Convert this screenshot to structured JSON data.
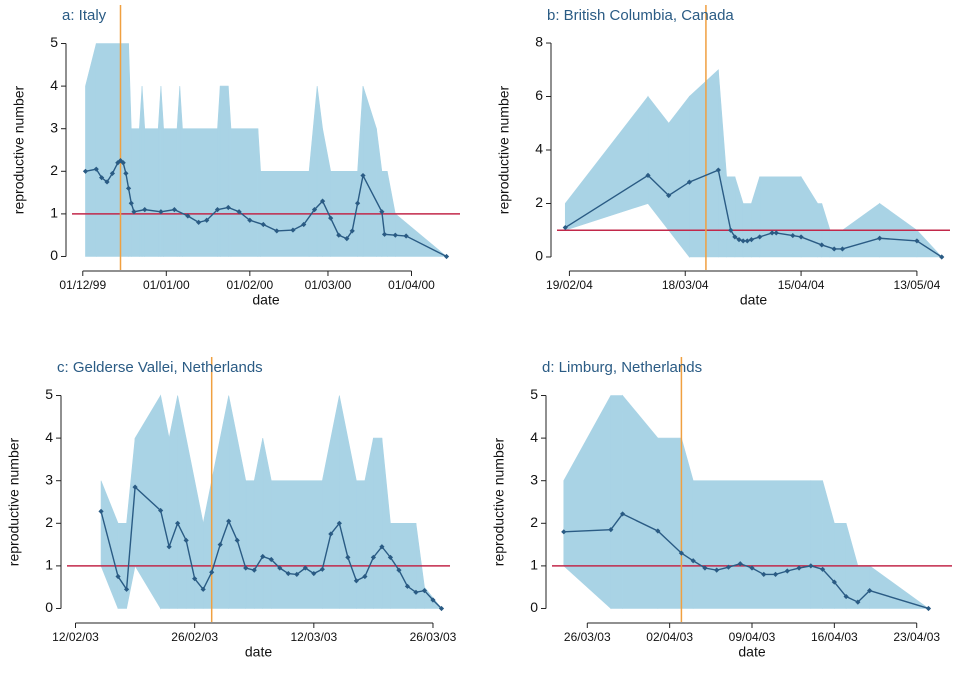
{
  "chart_data": [
    {
      "type": "line",
      "title": "a: Italy",
      "xlabel": "date",
      "ylabel": "reproductive number",
      "x": [
        "1999-12-02",
        "1999-12-06",
        "1999-12-08",
        "1999-12-10",
        "1999-12-12",
        "1999-12-14",
        "1999-12-15",
        "1999-12-16",
        "1999-12-17",
        "1999-12-18",
        "1999-12-19",
        "1999-12-20",
        "1999-12-24",
        "1999-12-30",
        "2000-01-04",
        "2000-01-09",
        "2000-01-13",
        "2000-01-16",
        "2000-01-20",
        "2000-01-24",
        "2000-01-28",
        "2000-02-01",
        "2000-02-06",
        "2000-02-11",
        "2000-02-17",
        "2000-02-21",
        "2000-02-25",
        "2000-02-28",
        "2000-03-02",
        "2000-03-05",
        "2000-03-08",
        "2000-03-10",
        "2000-03-12",
        "2000-03-14",
        "2000-03-21",
        "2000-03-22",
        "2000-03-26",
        "2000-03-30",
        "2000-04-14"
      ],
      "values": [
        2.0,
        2.05,
        1.85,
        1.75,
        1.95,
        2.2,
        2.25,
        2.2,
        1.95,
        1.6,
        1.25,
        1.05,
        1.1,
        1.05,
        1.1,
        0.95,
        0.8,
        0.85,
        1.1,
        1.15,
        1.05,
        0.85,
        0.75,
        0.6,
        0.62,
        0.75,
        1.1,
        1.3,
        0.9,
        0.5,
        0.42,
        0.6,
        1.25,
        1.9,
        1.05,
        0.52,
        0.5,
        0.48,
        0.0
      ],
      "band": {
        "x": [
          "1999-12-02",
          "1999-12-06",
          "1999-12-18",
          "1999-12-19",
          "1999-12-22",
          "1999-12-23",
          "1999-12-24",
          "1999-12-29",
          "1999-12-30",
          "1999-12-31",
          "2000-01-05",
          "2000-01-06",
          "2000-01-07",
          "2000-01-20",
          "2000-01-21",
          "2000-01-24",
          "2000-01-25",
          "2000-02-04",
          "2000-02-05",
          "2000-02-23",
          "2000-02-26",
          "2000-02-28",
          "2000-03-02",
          "2000-03-12",
          "2000-03-14",
          "2000-03-19",
          "2000-03-21",
          "2000-03-23",
          "2000-03-26",
          "2000-04-14"
        ],
        "lower": [
          0,
          0,
          0,
          0,
          0,
          0,
          0,
          0,
          0,
          0,
          0,
          0,
          0,
          0,
          0,
          0,
          0,
          0,
          0,
          0,
          0,
          0,
          0,
          0,
          0,
          0,
          0,
          0,
          0,
          0
        ],
        "upper": [
          4,
          5,
          5,
          3,
          3,
          4,
          3,
          3,
          4,
          3,
          3,
          4,
          3,
          3,
          4,
          4,
          3,
          3,
          2,
          2,
          4,
          3,
          2,
          2,
          4,
          3,
          2,
          2,
          1,
          0
        ]
      },
      "hline": 1,
      "vline": "1999-12-15",
      "xlim": [
        "1999-11-27",
        "2000-04-19"
      ],
      "xticks": [
        {
          "value": "1999-12-01",
          "label": "01/12/99"
        },
        {
          "value": "2000-01-01",
          "label": "01/01/00"
        },
        {
          "value": "2000-02-01",
          "label": "01/02/00"
        },
        {
          "value": "2000-03-01",
          "label": "01/03/00"
        },
        {
          "value": "2000-04-01",
          "label": "01/04/00"
        }
      ],
      "ylim": [
        -0.2,
        5.2
      ],
      "yticks": [
        0,
        1,
        2,
        3,
        4,
        5
      ],
      "color": "#2a5b84",
      "band_color": "#a9d3e5",
      "hline_color": "#c2284a",
      "vline_color": "#f0a040"
    },
    {
      "type": "line",
      "title": "b: British Columbia, Canada",
      "xlabel": "date",
      "ylabel": "reproductive number",
      "x": [
        "2004-02-18",
        "2004-03-09",
        "2004-03-14",
        "2004-03-19",
        "2004-03-26",
        "2004-03-29",
        "2004-03-30",
        "2004-03-31",
        "2004-04-01",
        "2004-04-02",
        "2004-04-03",
        "2004-04-05",
        "2004-04-08",
        "2004-04-09",
        "2004-04-13",
        "2004-04-15",
        "2004-04-20",
        "2004-04-23",
        "2004-04-25",
        "2004-05-04",
        "2004-05-13",
        "2004-05-19"
      ],
      "values": [
        1.1,
        3.05,
        2.3,
        2.8,
        3.25,
        1.0,
        0.75,
        0.65,
        0.6,
        0.6,
        0.65,
        0.75,
        0.9,
        0.9,
        0.8,
        0.75,
        0.45,
        0.3,
        0.3,
        0.7,
        0.6,
        0.0
      ],
      "band": {
        "x": [
          "2004-02-18",
          "2004-03-09",
          "2004-03-14",
          "2004-03-19",
          "2004-03-26",
          "2004-03-28",
          "2004-03-30",
          "2004-04-01",
          "2004-04-03",
          "2004-04-05",
          "2004-04-15",
          "2004-04-19",
          "2004-04-20",
          "2004-04-22",
          "2004-04-25",
          "2004-05-04",
          "2004-05-13",
          "2004-05-19"
        ],
        "lower": [
          1,
          2,
          1,
          0,
          0,
          0,
          0,
          0,
          0,
          0,
          0,
          0,
          0,
          0,
          0,
          0,
          0,
          0
        ],
        "upper": [
          2,
          6,
          5,
          6,
          7,
          3,
          3,
          2,
          2,
          3,
          3,
          2,
          2,
          1,
          1,
          2,
          1,
          0
        ]
      },
      "hline": 1,
      "vline": "2004-03-23",
      "xlim": [
        "2004-02-16",
        "2004-05-21"
      ],
      "xticks": [
        {
          "value": "2004-02-19",
          "label": "19/02/04"
        },
        {
          "value": "2004-03-18",
          "label": "18/03/04"
        },
        {
          "value": "2004-04-15",
          "label": "15/04/04"
        },
        {
          "value": "2004-05-13",
          "label": "13/05/04"
        }
      ],
      "ylim": [
        -0.3,
        8.3
      ],
      "yticks": [
        0,
        2,
        4,
        6,
        8
      ],
      "color": "#2a5b84",
      "band_color": "#a9d3e5",
      "hline_color": "#c2284a",
      "vline_color": "#f0a040"
    },
    {
      "type": "line",
      "title": "c: Gelderse Vallei, Netherlands",
      "xlabel": "date",
      "ylabel": "reproductive number",
      "x": [
        "2003-02-15",
        "2003-02-17",
        "2003-02-18",
        "2003-02-19",
        "2003-02-22",
        "2003-02-23",
        "2003-02-24",
        "2003-02-25",
        "2003-02-26",
        "2003-02-27",
        "2003-02-28",
        "2003-03-01",
        "2003-03-02",
        "2003-03-03",
        "2003-03-04",
        "2003-03-05",
        "2003-03-06",
        "2003-03-07",
        "2003-03-08",
        "2003-03-09",
        "2003-03-10",
        "2003-03-11",
        "2003-03-12",
        "2003-03-13",
        "2003-03-14",
        "2003-03-15",
        "2003-03-16",
        "2003-03-17",
        "2003-03-18",
        "2003-03-19",
        "2003-03-20",
        "2003-03-21",
        "2003-03-22",
        "2003-03-23",
        "2003-03-24",
        "2003-03-25",
        "2003-03-26",
        "2003-03-27"
      ],
      "values": [
        2.28,
        0.75,
        0.45,
        2.85,
        2.3,
        1.45,
        2.0,
        1.6,
        0.7,
        0.45,
        0.85,
        1.5,
        2.05,
        1.6,
        0.95,
        0.9,
        1.22,
        1.15,
        0.95,
        0.82,
        0.8,
        0.95,
        0.82,
        0.92,
        1.75,
        2.0,
        1.2,
        0.65,
        0.75,
        1.2,
        1.45,
        1.2,
        0.9,
        0.52,
        0.38,
        0.42,
        0.2,
        0.0
      ],
      "band": {
        "x": [
          "2003-02-15",
          "2003-02-17",
          "2003-02-18",
          "2003-02-19",
          "2003-02-22",
          "2003-02-23",
          "2003-02-24",
          "2003-02-25",
          "2003-02-26",
          "2003-02-27",
          "2003-02-28",
          "2003-03-02",
          "2003-03-04",
          "2003-03-05",
          "2003-03-06",
          "2003-03-07",
          "2003-03-13",
          "2003-03-15",
          "2003-03-17",
          "2003-03-18",
          "2003-03-19",
          "2003-03-20",
          "2003-03-21",
          "2003-03-24",
          "2003-03-25",
          "2003-03-27"
        ],
        "lower": [
          1,
          0,
          0,
          1,
          0,
          0,
          0,
          0,
          0,
          0,
          0,
          0,
          0,
          0,
          0,
          0,
          0,
          0,
          0,
          0,
          0,
          0,
          0,
          0,
          0,
          0
        ],
        "upper": [
          3,
          2,
          2,
          4,
          5,
          4,
          5,
          4,
          3,
          2,
          3,
          5,
          3,
          3,
          4,
          3,
          3,
          5,
          3,
          3,
          4,
          4,
          2,
          2,
          0.5,
          0
        ]
      },
      "hline": 1,
      "vline": "2003-02-28",
      "xlim": [
        "2003-02-11",
        "2003-03-28"
      ],
      "xticks": [
        {
          "value": "2003-02-12",
          "label": "12/02/03"
        },
        {
          "value": "2003-02-26",
          "label": "26/02/03"
        },
        {
          "value": "2003-03-12",
          "label": "12/03/03"
        },
        {
          "value": "2003-03-26",
          "label": "26/03/03"
        }
      ],
      "ylim": [
        -0.2,
        5.2
      ],
      "yticks": [
        0,
        1,
        2,
        3,
        4,
        5
      ],
      "color": "#2a5b84",
      "band_color": "#a9d3e5",
      "hline_color": "#c2284a",
      "vline_color": "#f0a040"
    },
    {
      "type": "line",
      "title": "d: Limburg, Netherlands",
      "xlabel": "date",
      "ylabel": "reproductive number",
      "x": [
        "2003-03-24",
        "2003-03-28",
        "2003-03-29",
        "2003-04-01",
        "2003-04-03",
        "2003-04-04",
        "2003-04-05",
        "2003-04-06",
        "2003-04-07",
        "2003-04-08",
        "2003-04-09",
        "2003-04-10",
        "2003-04-11",
        "2003-04-12",
        "2003-04-13",
        "2003-04-14",
        "2003-04-15",
        "2003-04-16",
        "2003-04-17",
        "2003-04-18",
        "2003-04-19",
        "2003-04-24"
      ],
      "values": [
        1.8,
        1.85,
        2.22,
        1.82,
        1.3,
        1.12,
        0.95,
        0.9,
        0.97,
        1.05,
        0.95,
        0.8,
        0.8,
        0.88,
        0.95,
        1.0,
        0.92,
        0.62,
        0.28,
        0.15,
        0.42,
        0.0
      ],
      "band": {
        "x": [
          "2003-03-24",
          "2003-03-28",
          "2003-03-29",
          "2003-04-01",
          "2003-04-03",
          "2003-04-04",
          "2003-04-14",
          "2003-04-15",
          "2003-04-16",
          "2003-04-17",
          "2003-04-18",
          "2003-04-19",
          "2003-04-24"
        ],
        "lower": [
          1,
          0,
          0,
          0,
          0,
          0,
          0,
          0,
          0,
          0,
          0,
          0,
          0
        ],
        "upper": [
          3,
          5,
          5,
          4,
          4,
          3,
          3,
          3,
          2,
          2,
          1,
          1,
          0
        ]
      },
      "hline": 1,
      "vline": "2003-04-03",
      "xlim": [
        "2003-03-23",
        "2003-04-26"
      ],
      "xticks": [
        {
          "value": "2003-03-26",
          "label": "26/03/03"
        },
        {
          "value": "2003-04-02",
          "label": "02/04/03"
        },
        {
          "value": "2003-04-09",
          "label": "09/04/03"
        },
        {
          "value": "2003-04-16",
          "label": "16/04/03"
        },
        {
          "value": "2003-04-23",
          "label": "23/04/03"
        }
      ],
      "ylim": [
        -0.2,
        5.2
      ],
      "yticks": [
        0,
        1,
        2,
        3,
        4,
        5
      ],
      "color": "#2a5b84",
      "band_color": "#a9d3e5",
      "hline_color": "#c2284a",
      "vline_color": "#f0a040"
    }
  ]
}
